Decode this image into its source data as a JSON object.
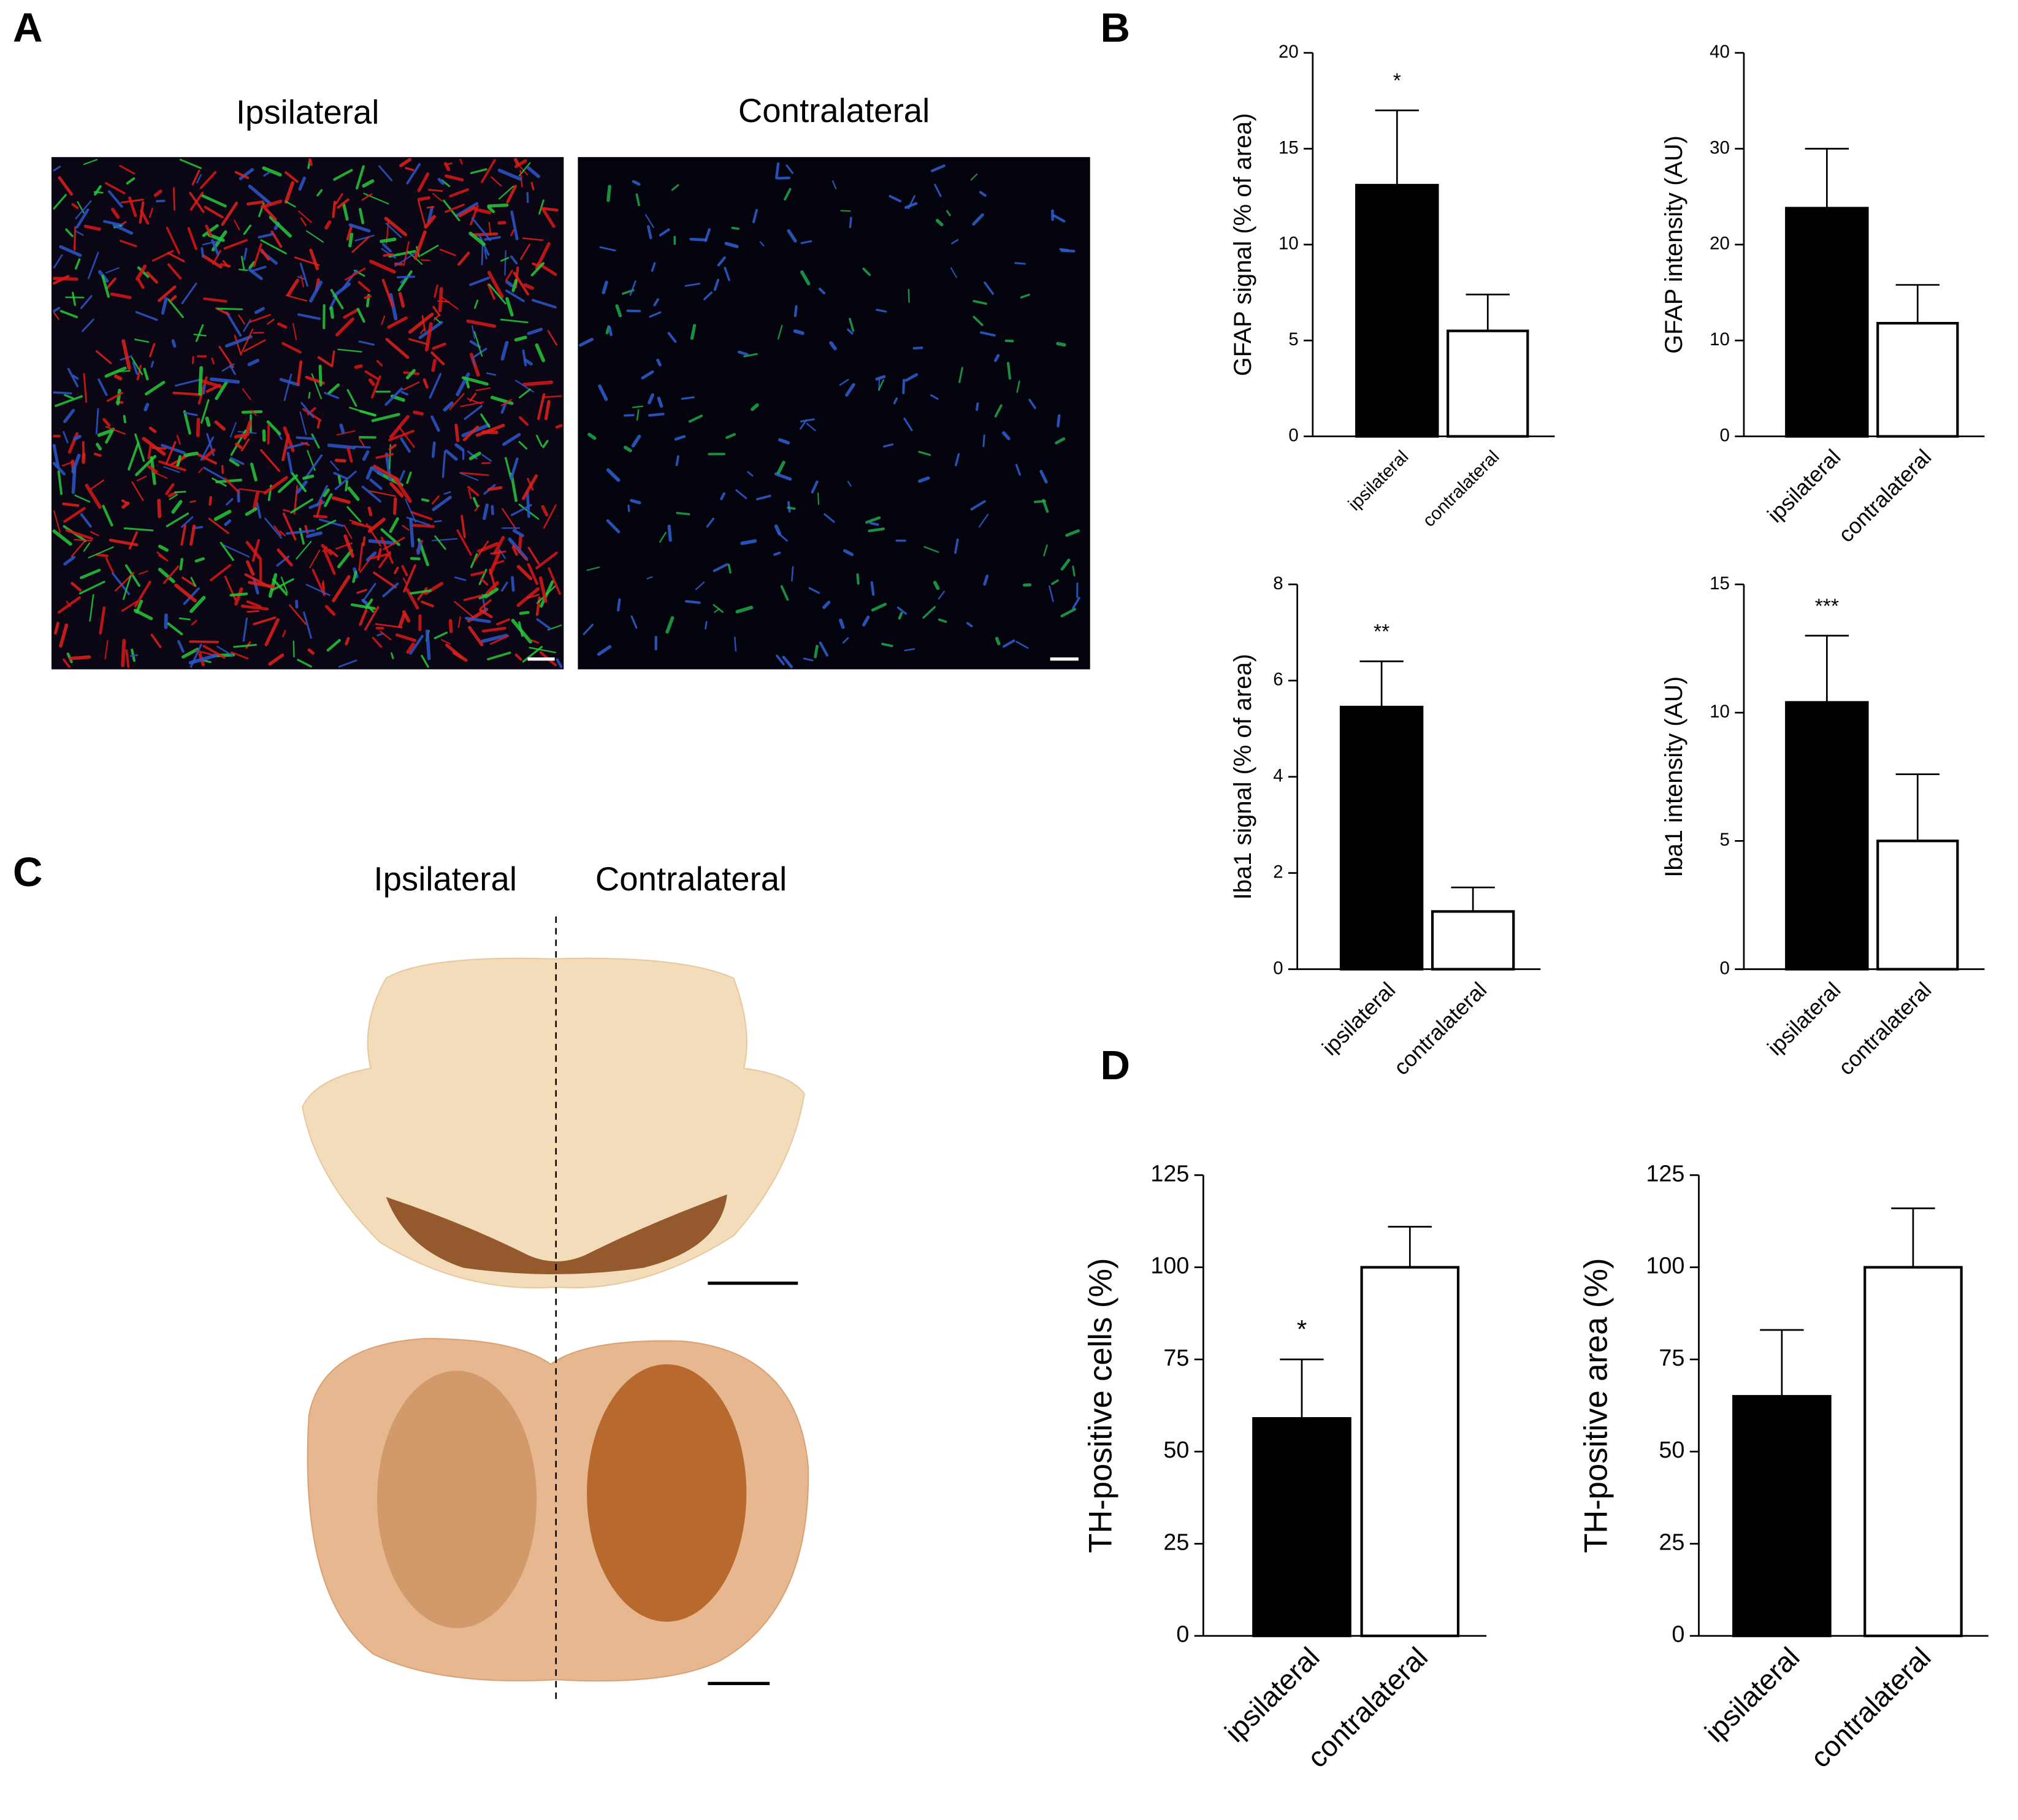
{
  "panels": {
    "A": {
      "label": "A",
      "columns": [
        "Ipsilateral",
        "Contralateral"
      ]
    },
    "B": {
      "label": "B"
    },
    "C": {
      "label": "C",
      "columns": [
        "Ipsilateral",
        "Contralateral"
      ]
    },
    "D": {
      "label": "D"
    }
  },
  "chart_data": [
    {
      "type": "bar",
      "ylabel": "GFAP signal (% of area)",
      "categories": [
        "ipsilateral",
        "contralateral"
      ],
      "values": [
        13.1,
        5.5
      ],
      "errors": [
        3.9,
        1.9
      ],
      "colors": [
        "#000000",
        "#ffffff"
      ],
      "ylim": [
        0,
        20
      ],
      "yticks": [
        0,
        5,
        10,
        15,
        20
      ],
      "annotation": "*"
    },
    {
      "type": "bar",
      "ylabel": "GFAP intensity (AU)",
      "categories": [
        "ipsilateral",
        "contralateral"
      ],
      "values": [
        23.8,
        11.8
      ],
      "errors": [
        6.2,
        4.0
      ],
      "colors": [
        "#000000",
        "#ffffff"
      ],
      "ylim": [
        0,
        40
      ],
      "yticks": [
        0,
        10,
        20,
        30,
        40
      ]
    },
    {
      "type": "bar",
      "ylabel": "Iba1 signal (% of area)",
      "categories": [
        "ipsilateral",
        "contralateral"
      ],
      "values": [
        5.45,
        1.2
      ],
      "errors": [
        0.95,
        0.5
      ],
      "colors": [
        "#000000",
        "#ffffff"
      ],
      "ylim": [
        0,
        8
      ],
      "yticks": [
        0,
        2,
        4,
        6,
        8
      ],
      "annotation": "**"
    },
    {
      "type": "bar",
      "ylabel": "Iba1 intensity (AU)",
      "categories": [
        "ipsilateral",
        "contralateral"
      ],
      "values": [
        10.4,
        5.0
      ],
      "errors": [
        2.6,
        2.6
      ],
      "colors": [
        "#000000",
        "#ffffff"
      ],
      "ylim": [
        0,
        15
      ],
      "yticks": [
        0,
        5,
        10,
        15
      ],
      "annotation": "***"
    },
    {
      "type": "bar",
      "ylabel": "TH-positive cells (%)",
      "categories": [
        "ipsilateral",
        "contralateral"
      ],
      "values": [
        59,
        100
      ],
      "errors": [
        16,
        11
      ],
      "colors": [
        "#000000",
        "#ffffff"
      ],
      "ylim": [
        0,
        125
      ],
      "yticks": [
        0,
        25,
        50,
        75,
        100,
        125
      ],
      "annotation": "*"
    },
    {
      "type": "bar",
      "ylabel": "TH-positive area (%)",
      "categories": [
        "ipsilateral",
        "contralateral"
      ],
      "values": [
        65,
        100
      ],
      "errors": [
        18,
        16
      ],
      "colors": [
        "#000000",
        "#ffffff"
      ],
      "ylim": [
        0,
        125
      ],
      "yticks": [
        0,
        25,
        50,
        75,
        100,
        125
      ]
    }
  ]
}
